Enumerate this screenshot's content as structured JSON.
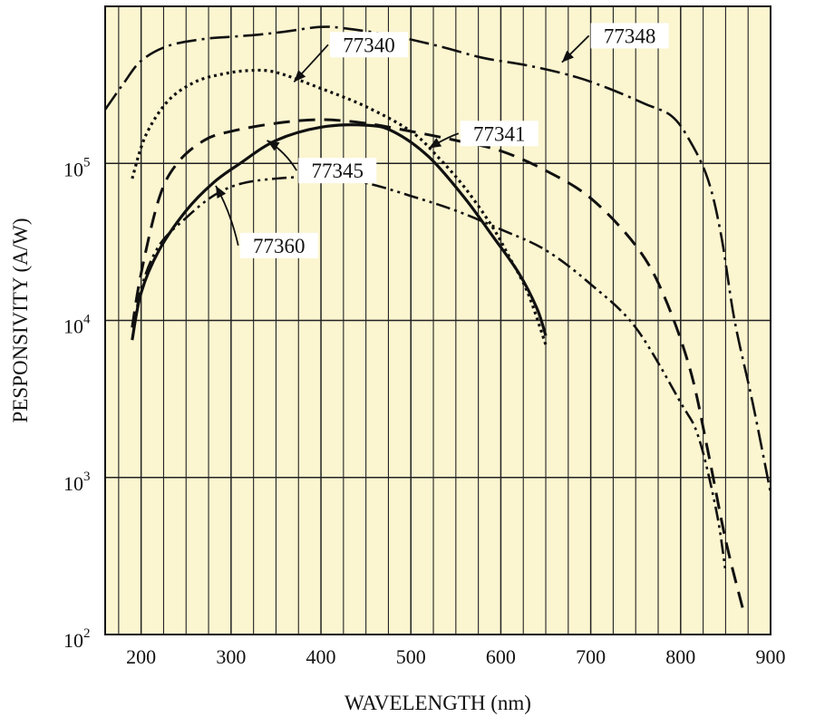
{
  "chart_data": {
    "type": "line",
    "title": "",
    "xlabel": "WAVELENGTH (nm)",
    "ylabel": "PESPONSIVITY (A/W)",
    "x_scale": "linear",
    "y_scale": "log",
    "xlim": [
      160,
      900
    ],
    "ylim": [
      100,
      1000000
    ],
    "grid": true,
    "background_color": "#fbf5d0",
    "line_color": "#111111",
    "x_ticks": [
      {
        "value": 200,
        "label": "200"
      },
      {
        "value": 300,
        "label": "300"
      },
      {
        "value": 400,
        "label": "400"
      },
      {
        "value": 500,
        "label": "500"
      },
      {
        "value": 600,
        "label": "600"
      },
      {
        "value": 700,
        "label": "700"
      },
      {
        "value": 800,
        "label": "800"
      },
      {
        "value": 900,
        "label": "900"
      }
    ],
    "y_ticks": [
      {
        "value": 100,
        "base": "10",
        "exp": "2"
      },
      {
        "value": 1000,
        "base": "10",
        "exp": "3"
      },
      {
        "value": 10000,
        "base": "10",
        "exp": "4"
      },
      {
        "value": 100000,
        "base": "10",
        "exp": "5"
      }
    ],
    "series": [
      {
        "name": "77348",
        "style": "dash-dot",
        "label_at": [
          700,
          650000
        ],
        "arrow_to": [
          668,
          440000
        ],
        "points": [
          [
            160,
            220000
          ],
          [
            180,
            320000
          ],
          [
            200,
            450000
          ],
          [
            230,
            560000
          ],
          [
            270,
            620000
          ],
          [
            300,
            640000
          ],
          [
            330,
            660000
          ],
          [
            360,
            690000
          ],
          [
            400,
            740000
          ],
          [
            430,
            720000
          ],
          [
            480,
            650000
          ],
          [
            530,
            560000
          ],
          [
            580,
            470000
          ],
          [
            630,
            420000
          ],
          [
            680,
            360000
          ],
          [
            720,
            300000
          ],
          [
            760,
            240000
          ],
          [
            790,
            200000
          ],
          [
            810,
            140000
          ],
          [
            830,
            80000
          ],
          [
            845,
            35000
          ],
          [
            860,
            10000
          ],
          [
            880,
            3000
          ],
          [
            900,
            800
          ]
        ]
      },
      {
        "name": "77340",
        "style": "dotted",
        "label_at": [
          410,
          570000
        ],
        "arrow_to": [
          370,
          330000
        ],
        "points": [
          [
            190,
            80000
          ],
          [
            205,
            150000
          ],
          [
            230,
            250000
          ],
          [
            260,
            330000
          ],
          [
            290,
            370000
          ],
          [
            320,
            390000
          ],
          [
            350,
            380000
          ],
          [
            400,
            300000
          ],
          [
            450,
            230000
          ],
          [
            500,
            160000
          ],
          [
            530,
            110000
          ],
          [
            560,
            70000
          ],
          [
            590,
            40000
          ],
          [
            610,
            25000
          ],
          [
            630,
            15000
          ],
          [
            650,
            7000
          ]
        ]
      },
      {
        "name": "77341",
        "style": "dashed",
        "label_at": [
          555,
          155000
        ],
        "arrow_to": [
          520,
          125000
        ],
        "points": [
          [
            190,
            9000
          ],
          [
            200,
            20000
          ],
          [
            220,
            60000
          ],
          [
            240,
            100000
          ],
          [
            270,
            140000
          ],
          [
            300,
            160000
          ],
          [
            350,
            180000
          ],
          [
            400,
            190000
          ],
          [
            450,
            180000
          ],
          [
            500,
            160000
          ],
          [
            550,
            140000
          ],
          [
            600,
            120000
          ],
          [
            650,
            90000
          ],
          [
            700,
            60000
          ],
          [
            750,
            30000
          ],
          [
            780,
            15000
          ],
          [
            810,
            5000
          ],
          [
            830,
            1500
          ],
          [
            850,
            400
          ],
          [
            870,
            140
          ]
        ]
      },
      {
        "name": "77345",
        "style": "solid",
        "label_at": [
          375,
          90000
        ],
        "arrow_to": [
          340,
          140000
        ],
        "points": [
          [
            190,
            7500
          ],
          [
            200,
            15000
          ],
          [
            220,
            28000
          ],
          [
            250,
            50000
          ],
          [
            280,
            75000
          ],
          [
            310,
            100000
          ],
          [
            350,
            140000
          ],
          [
            400,
            170000
          ],
          [
            450,
            175000
          ],
          [
            480,
            160000
          ],
          [
            520,
            110000
          ],
          [
            560,
            60000
          ],
          [
            590,
            35000
          ],
          [
            620,
            20000
          ],
          [
            640,
            12000
          ],
          [
            650,
            8000
          ]
        ]
      },
      {
        "name": "77360",
        "style": "dash-dot-dot",
        "label_at": [
          310,
          30000
        ],
        "arrow_to": [
          283,
          72000
        ],
        "points": [
          [
            190,
            7500
          ],
          [
            200,
            16000
          ],
          [
            220,
            30000
          ],
          [
            250,
            45000
          ],
          [
            280,
            62000
          ],
          [
            310,
            74000
          ],
          [
            350,
            80000
          ],
          [
            400,
            82000
          ],
          [
            450,
            75000
          ],
          [
            500,
            62000
          ],
          [
            550,
            50000
          ],
          [
            600,
            38000
          ],
          [
            650,
            28000
          ],
          [
            700,
            17000
          ],
          [
            750,
            9000
          ],
          [
            800,
            3000
          ],
          [
            820,
            1800
          ],
          [
            840,
            600
          ],
          [
            850,
            250
          ]
        ]
      }
    ]
  }
}
